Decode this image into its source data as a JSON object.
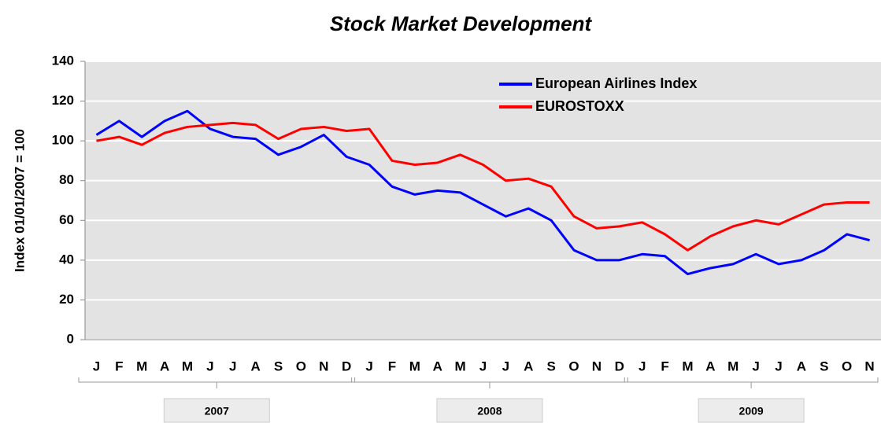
{
  "chart_data": {
    "type": "line",
    "title": "Stock Market Development",
    "y_label": "Index 01/01/2007 = 100",
    "categories": [
      "J",
      "F",
      "M",
      "A",
      "M",
      "J",
      "J",
      "A",
      "S",
      "O",
      "N",
      "D",
      "J",
      "F",
      "M",
      "A",
      "M",
      "J",
      "J",
      "A",
      "S",
      "O",
      "N",
      "D",
      "J",
      "F",
      "M",
      "A",
      "M",
      "J",
      "J",
      "A",
      "S",
      "O",
      "N"
    ],
    "year_groups": [
      {
        "label": "2007",
        "span": 12
      },
      {
        "label": "2008",
        "span": 12
      },
      {
        "label": "2009",
        "span": 11
      }
    ],
    "series": [
      {
        "name": "European Airlines Index",
        "color": "#0000ff",
        "values": [
          103,
          110,
          102,
          110,
          115,
          106,
          102,
          101,
          93,
          97,
          103,
          92,
          88,
          77,
          73,
          75,
          74,
          68,
          62,
          66,
          60,
          45,
          40,
          40,
          43,
          42,
          33,
          36,
          38,
          43,
          38,
          40,
          45,
          53,
          50
        ]
      },
      {
        "name": "EUROSTOXX",
        "color": "#ff0000",
        "values": [
          100,
          102,
          98,
          104,
          107,
          108,
          109,
          108,
          101,
          106,
          107,
          105,
          106,
          90,
          88,
          89,
          93,
          88,
          80,
          81,
          77,
          62,
          56,
          57,
          59,
          53,
          45,
          52,
          57,
          60,
          58,
          63,
          68,
          69,
          69
        ]
      }
    ],
    "ylim": [
      0,
      140
    ],
    "yticks": [
      0,
      20,
      40,
      60,
      80,
      100,
      120,
      140
    ],
    "grid": true,
    "legend": "top-right"
  }
}
